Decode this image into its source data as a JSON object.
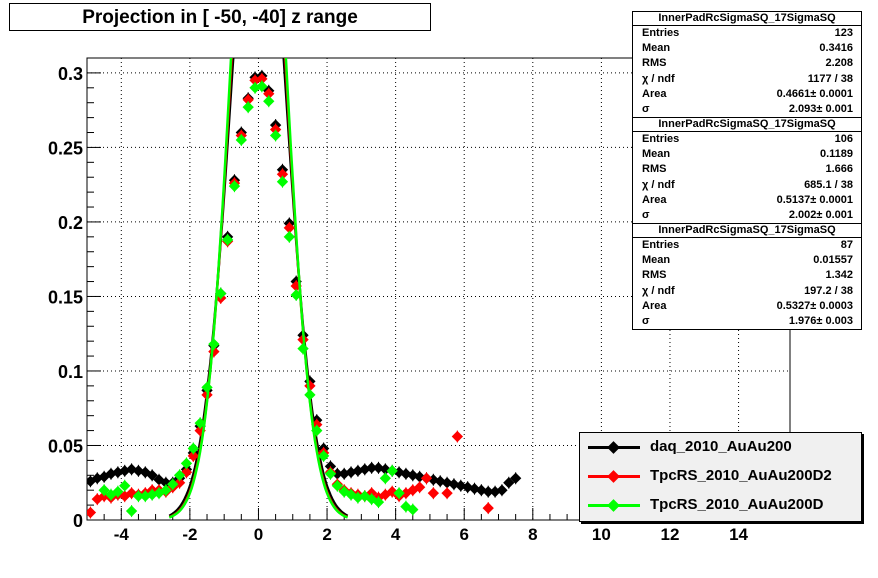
{
  "title": "Projection in [ -50, -40] z range",
  "chart_data": {
    "type": "scatter",
    "title": "Projection in [ -50, -40] z range",
    "xlabel": "",
    "ylabel": "",
    "xlim": [
      -5,
      15.5
    ],
    "ylim": [
      0,
      0.31
    ],
    "x_ticks": [
      -4,
      -2,
      0,
      2,
      4,
      6,
      8,
      10,
      12,
      14
    ],
    "y_ticks": [
      0,
      0.05,
      0.1,
      0.15,
      0.2,
      0.25,
      0.3
    ],
    "y_tick_labels": [
      "0",
      "0.05",
      "0.1",
      "0.15",
      "0.2",
      "0.25",
      "0.3"
    ],
    "x_tick_labels": [
      "-4",
      "-2",
      "0",
      "2",
      "4",
      "6",
      "8",
      "10",
      "12",
      "14"
    ],
    "grid": true,
    "legend_position": "bottom-right",
    "series": [
      {
        "name": "daq_2010_AuAu200",
        "color": "#000000",
        "fit": {
          "amplitude": 0.4661,
          "sigma": 2.093,
          "mean": 0.0
        },
        "x": [
          -4.9,
          -4.7,
          -4.5,
          -4.3,
          -4.1,
          -3.9,
          -3.7,
          -3.5,
          -3.3,
          -3.1,
          -2.9,
          -2.7,
          -2.5,
          -2.3,
          -2.1,
          -1.9,
          -1.7,
          -1.5,
          -1.3,
          -1.1,
          -0.9,
          -0.7,
          -0.5,
          -0.3,
          -0.1,
          0.1,
          0.3,
          0.5,
          0.7,
          0.9,
          1.1,
          1.3,
          1.5,
          1.7,
          1.9,
          2.1,
          2.3,
          2.5,
          2.7,
          2.9,
          3.1,
          3.3,
          3.5,
          3.7,
          3.9,
          4.1,
          4.3,
          4.5,
          4.7,
          4.9,
          5.1,
          5.3,
          5.5,
          5.7,
          5.9,
          6.1,
          6.3,
          6.5,
          6.7,
          6.9,
          7.1,
          7.3,
          7.5
        ],
        "y": [
          0.026,
          0.028,
          0.029,
          0.031,
          0.032,
          0.033,
          0.034,
          0.033,
          0.032,
          0.03,
          0.027,
          0.025,
          0.025,
          0.028,
          0.034,
          0.045,
          0.063,
          0.087,
          0.117,
          0.152,
          0.19,
          0.228,
          0.26,
          0.283,
          0.297,
          0.298,
          0.288,
          0.265,
          0.235,
          0.199,
          0.16,
          0.124,
          0.093,
          0.067,
          0.048,
          0.036,
          0.031,
          0.031,
          0.032,
          0.033,
          0.034,
          0.035,
          0.035,
          0.034,
          0.033,
          0.032,
          0.031,
          0.03,
          0.029,
          0.028,
          0.027,
          0.026,
          0.025,
          0.024,
          0.023,
          0.022,
          0.021,
          0.02,
          0.019,
          0.019,
          0.02,
          0.025,
          0.028
        ]
      },
      {
        "name": "TpcRS_2010_AuAu200D2",
        "color": "#ff0000",
        "fit": {
          "amplitude": 0.5137,
          "sigma": 2.002,
          "mean": 0.0
        },
        "x": [
          -4.9,
          -4.7,
          -4.5,
          -4.3,
          -4.1,
          -3.9,
          -3.7,
          -3.5,
          -3.3,
          -3.1,
          -2.9,
          -2.7,
          -2.5,
          -2.3,
          -2.1,
          -1.9,
          -1.7,
          -1.5,
          -1.3,
          -1.1,
          -0.9,
          -0.7,
          -0.5,
          -0.3,
          -0.1,
          0.1,
          0.3,
          0.5,
          0.7,
          0.9,
          1.1,
          1.3,
          1.5,
          1.7,
          1.9,
          2.1,
          2.3,
          2.5,
          2.7,
          2.9,
          3.1,
          3.3,
          3.5,
          3.7,
          3.9,
          4.1,
          4.3,
          4.5,
          4.7,
          4.9,
          5.1,
          5.5,
          5.8,
          6.7
        ],
        "y": [
          0.005,
          0.014,
          0.016,
          0.015,
          0.017,
          0.016,
          0.018,
          0.017,
          0.018,
          0.02,
          0.02,
          0.019,
          0.022,
          0.025,
          0.032,
          0.043,
          0.06,
          0.084,
          0.113,
          0.149,
          0.187,
          0.226,
          0.258,
          0.282,
          0.295,
          0.296,
          0.286,
          0.262,
          0.232,
          0.196,
          0.157,
          0.121,
          0.09,
          0.064,
          0.045,
          0.032,
          0.024,
          0.02,
          0.018,
          0.017,
          0.016,
          0.018,
          0.015,
          0.017,
          0.019,
          0.016,
          0.018,
          0.02,
          0.022,
          0.028,
          0.018,
          0.018,
          0.056,
          0.008
        ]
      },
      {
        "name": "TpcRS_2010_AuAu200D",
        "color": "#00ff00",
        "fit": {
          "amplitude": 0.5327,
          "sigma": 1.976,
          "mean": 0.0
        },
        "x": [
          -4.5,
          -4.3,
          -4.1,
          -3.9,
          -3.7,
          -3.5,
          -3.3,
          -3.1,
          -2.9,
          -2.7,
          -2.5,
          -2.3,
          -2.1,
          -1.9,
          -1.7,
          -1.5,
          -1.3,
          -1.1,
          -0.9,
          -0.7,
          -0.5,
          -0.3,
          -0.1,
          0.1,
          0.3,
          0.5,
          0.7,
          0.9,
          1.1,
          1.3,
          1.5,
          1.7,
          1.9,
          2.1,
          2.3,
          2.5,
          2.7,
          2.9,
          3.1,
          3.3,
          3.5,
          3.7,
          3.9,
          4.1,
          4.3,
          4.5
        ],
        "y": [
          0.02,
          0.017,
          0.019,
          0.023,
          0.006,
          0.016,
          0.016,
          0.017,
          0.018,
          0.02,
          0.024,
          0.03,
          0.038,
          0.048,
          0.065,
          0.089,
          0.118,
          0.152,
          0.188,
          0.224,
          0.255,
          0.277,
          0.29,
          0.291,
          0.281,
          0.258,
          0.227,
          0.19,
          0.151,
          0.115,
          0.084,
          0.06,
          0.043,
          0.031,
          0.023,
          0.019,
          0.017,
          0.015,
          0.016,
          0.014,
          0.012,
          0.028,
          0.033,
          0.018,
          0.009,
          0.007
        ]
      }
    ]
  },
  "stats_boxes": [
    {
      "name": "InnerPadRcSigmaSQ_17SigmaSQ",
      "rows": [
        {
          "key": "Entries",
          "value": "123"
        },
        {
          "key": "Mean",
          "value": "0.3416"
        },
        {
          "key": "RMS",
          "value": "2.208"
        },
        {
          "key": "χ / ndf",
          "value": "1177 / 38"
        },
        {
          "key": "Area",
          "value": "0.4661± 0.0001"
        },
        {
          "key": "σ",
          "value": "2.093± 0.001"
        }
      ]
    },
    {
      "name": "InnerPadRcSigmaSQ_17SigmaSQ",
      "rows": [
        {
          "key": "Entries",
          "value": "106"
        },
        {
          "key": "Mean",
          "value": "0.1189"
        },
        {
          "key": "RMS",
          "value": "1.666"
        },
        {
          "key": "χ / ndf",
          "value": "685.1 / 38"
        },
        {
          "key": "Area",
          "value": "0.5137± 0.0001"
        },
        {
          "key": "σ",
          "value": "2.002± 0.001"
        }
      ]
    },
    {
      "name": "InnerPadRcSigmaSQ_17SigmaSQ",
      "rows": [
        {
          "key": "Entries",
          "value": "87"
        },
        {
          "key": "Mean",
          "value": "0.01557"
        },
        {
          "key": "RMS",
          "value": "1.342"
        },
        {
          "key": "χ / ndf",
          "value": "197.2 / 38"
        },
        {
          "key": "Area",
          "value": "0.5327± 0.0003"
        },
        {
          "key": "σ",
          "value": "1.976± 0.003"
        }
      ]
    }
  ],
  "legend": [
    {
      "label": "daq_2010_AuAu200",
      "color": "#000000"
    },
    {
      "label": "TpcRS_2010_AuAu200D2",
      "color": "#ff0000"
    },
    {
      "label": "TpcRS_2010_AuAu200D",
      "color": "#00ff00"
    }
  ]
}
